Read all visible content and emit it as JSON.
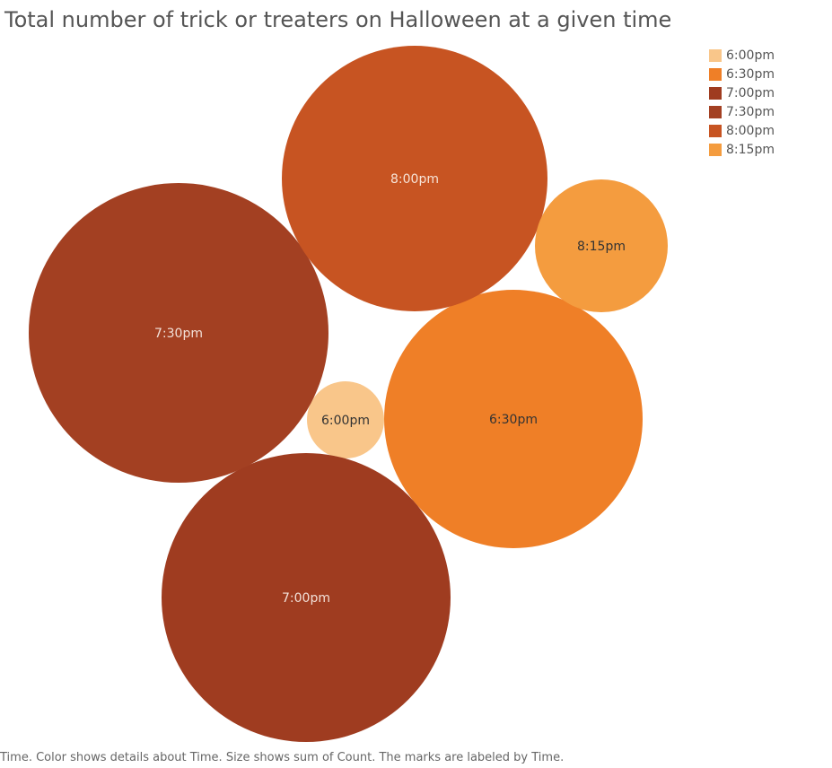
{
  "chart_data": {
    "type": "bubble",
    "title": "Total number of trick or treaters on Halloween at a given time",
    "caption": "Time.  Color shows details about Time.  Size shows sum of Count.  The marks are labeled by Time.",
    "size_measure": "sum of Count",
    "color_dimension": "Time",
    "legend_position": "top-right",
    "series": [
      {
        "label": "6:00pm",
        "relative_size": 0.08,
        "color": "#f9c68a",
        "label_color": "#333333"
      },
      {
        "label": "6:30pm",
        "relative_size": 0.93,
        "color": "#ef7f27",
        "label_color": "#333333"
      },
      {
        "label": "7:00pm",
        "relative_size": 1.15,
        "color": "#9f3c20",
        "label_color": "#f2e0d8"
      },
      {
        "label": "7:30pm",
        "relative_size": 1.2,
        "color": "#a34022",
        "label_color": "#f2e0d8"
      },
      {
        "label": "8:00pm",
        "relative_size": 0.97,
        "color": "#c75422",
        "label_color": "#f7e4d8"
      },
      {
        "label": "8:15pm",
        "relative_size": 0.24,
        "color": "#f49c3f",
        "label_color": "#333333"
      }
    ],
    "legend": [
      {
        "label": "6:00pm",
        "color": "#f9c68a"
      },
      {
        "label": "6:30pm",
        "color": "#ef7f27"
      },
      {
        "label": "7:00pm",
        "color": "#9f3c20"
      },
      {
        "label": "7:30pm",
        "color": "#a34022"
      },
      {
        "label": "8:00pm",
        "color": "#c75422"
      },
      {
        "label": "8:15pm",
        "color": "#f49c3f"
      }
    ]
  }
}
